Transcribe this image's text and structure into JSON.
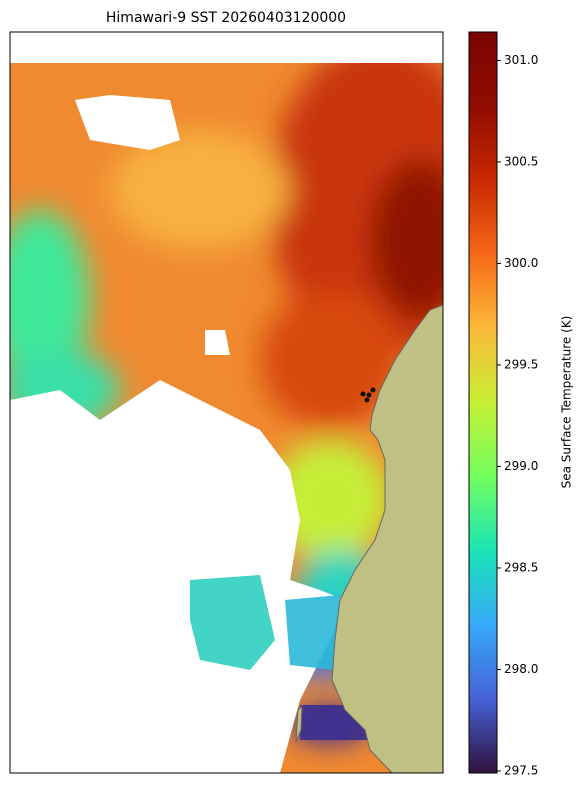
{
  "map": {
    "title": "Himawari-9 SST 20260403120000"
  },
  "colorbar": {
    "label": "Sea Surface Temperature (K)",
    "lim": [
      297.49,
      301.14
    ],
    "ticks": [
      {
        "value": 297.5,
        "label": "297.5"
      },
      {
        "value": 298,
        "label": "298.0"
      },
      {
        "value": 298.5,
        "label": "298.5"
      },
      {
        "value": 299,
        "label": "299.0"
      },
      {
        "value": 299.5,
        "label": "299.5"
      },
      {
        "value": 300,
        "label": "300.0"
      },
      {
        "value": 300.5,
        "label": "300.5"
      },
      {
        "value": 301,
        "label": "301.0"
      }
    ]
  }
}
